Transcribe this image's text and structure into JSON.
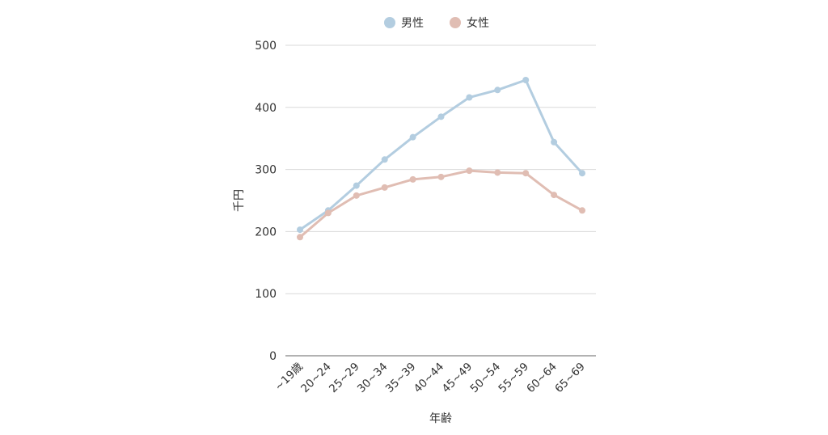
{
  "chart_data": {
    "type": "line",
    "title": "",
    "xlabel": "年齢",
    "ylabel": "千円",
    "ylim": [
      0,
      500
    ],
    "yticks": [
      0,
      100,
      200,
      300,
      400,
      500
    ],
    "grid": true,
    "legend_position": "top-center",
    "categories": [
      "~19歳",
      "20~24",
      "25~29",
      "30~34",
      "35~39",
      "40~44",
      "45~49",
      "50~54",
      "55~59",
      "60~64",
      "65~69"
    ],
    "series": [
      {
        "name": "男性",
        "color": "#b3cde0",
        "values": [
          203,
          234,
          274,
          316,
          352,
          385,
          416,
          428,
          444,
          344,
          294
        ]
      },
      {
        "name": "女性",
        "color": "#e0bdb3",
        "values": [
          191,
          230,
          258,
          271,
          284,
          288,
          298,
          295,
          294,
          259,
          234
        ]
      }
    ]
  }
}
